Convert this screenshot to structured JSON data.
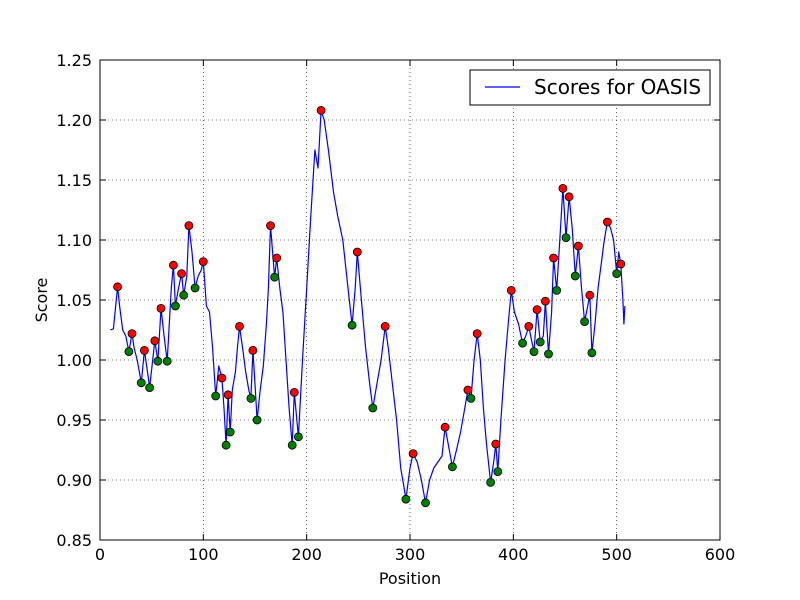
{
  "chart_data": {
    "type": "line",
    "xlabel": "Position",
    "ylabel": "Score",
    "xlim": [
      0,
      600
    ],
    "ylim": [
      0.85,
      1.25
    ],
    "xticks": [
      0,
      100,
      200,
      300,
      400,
      500,
      600
    ],
    "yticks": [
      0.85,
      0.9,
      0.95,
      1.0,
      1.05,
      1.1,
      1.15,
      1.2,
      1.25
    ],
    "xtick_labels": [
      "0",
      "100",
      "200",
      "300",
      "400",
      "500",
      "600"
    ],
    "ytick_labels": [
      "0.85",
      "0.90",
      "0.95",
      "1.00",
      "1.05",
      "1.10",
      "1.15",
      "1.20",
      "1.25"
    ],
    "grid": true,
    "legend_position": "top-right",
    "legend": [
      "Scores for OASIS"
    ],
    "series": [
      {
        "name": "Scores for OASIS",
        "color": "#0000ff",
        "points": [
          [
            10,
            1.025
          ],
          [
            13,
            1.026
          ],
          [
            17,
            1.061
          ],
          [
            19,
            1.045
          ],
          [
            22,
            1.025
          ],
          [
            25,
            1.02
          ],
          [
            28,
            1.007
          ],
          [
            31,
            1.022
          ],
          [
            33,
            1.01
          ],
          [
            36,
            1.0
          ],
          [
            40,
            0.981
          ],
          [
            43,
            1.008
          ],
          [
            46,
            0.99
          ],
          [
            48,
            0.977
          ],
          [
            51,
            1.0
          ],
          [
            53,
            1.016
          ],
          [
            56,
            0.999
          ],
          [
            59,
            1.043
          ],
          [
            62,
            1.02
          ],
          [
            65,
            0.999
          ],
          [
            69,
            1.06
          ],
          [
            71,
            1.079
          ],
          [
            73,
            1.045
          ],
          [
            76,
            1.06
          ],
          [
            79,
            1.072
          ],
          [
            81,
            1.054
          ],
          [
            84,
            1.07
          ],
          [
            86,
            1.112
          ],
          [
            89,
            1.09
          ],
          [
            92,
            1.06
          ],
          [
            95,
            1.07
          ],
          [
            98,
            1.075
          ],
          [
            100,
            1.082
          ],
          [
            103,
            1.045
          ],
          [
            106,
            1.04
          ],
          [
            109,
            1.01
          ],
          [
            112,
            0.97
          ],
          [
            115,
            0.995
          ],
          [
            118,
            0.985
          ],
          [
            120,
            0.96
          ],
          [
            122,
            0.929
          ],
          [
            124,
            0.971
          ],
          [
            126,
            0.94
          ],
          [
            128,
            0.975
          ],
          [
            131,
            0.99
          ],
          [
            133,
            1.01
          ],
          [
            135,
            1.028
          ],
          [
            138,
            1.01
          ],
          [
            141,
            0.99
          ],
          [
            144,
            0.975
          ],
          [
            146,
            0.968
          ],
          [
            148,
            1.008
          ],
          [
            150,
            0.98
          ],
          [
            152,
            0.95
          ],
          [
            155,
            0.975
          ],
          [
            158,
            0.995
          ],
          [
            161,
            1.03
          ],
          [
            163,
            1.06
          ],
          [
            165,
            1.112
          ],
          [
            167,
            1.09
          ],
          [
            169,
            1.069
          ],
          [
            171,
            1.085
          ],
          [
            174,
            1.06
          ],
          [
            177,
            1.04
          ],
          [
            180,
            1.0
          ],
          [
            183,
            0.96
          ],
          [
            186,
            0.929
          ],
          [
            188,
            0.973
          ],
          [
            190,
            0.955
          ],
          [
            192,
            0.936
          ],
          [
            196,
            1.0
          ],
          [
            200,
            1.06
          ],
          [
            204,
            1.12
          ],
          [
            208,
            1.175
          ],
          [
            211,
            1.16
          ],
          [
            214,
            1.208
          ],
          [
            217,
            1.2
          ],
          [
            221,
            1.175
          ],
          [
            226,
            1.14
          ],
          [
            230,
            1.12
          ],
          [
            235,
            1.1
          ],
          [
            240,
            1.06
          ],
          [
            244,
            1.029
          ],
          [
            247,
            1.06
          ],
          [
            249,
            1.09
          ],
          [
            253,
            1.05
          ],
          [
            257,
            1.01
          ],
          [
            261,
            0.98
          ],
          [
            264,
            0.96
          ],
          [
            268,
            0.98
          ],
          [
            272,
            1.0
          ],
          [
            276,
            1.028
          ],
          [
            279,
            1.01
          ],
          [
            283,
            0.98
          ],
          [
            287,
            0.95
          ],
          [
            291,
            0.91
          ],
          [
            294,
            0.895
          ],
          [
            296,
            0.884
          ],
          [
            300,
            0.91
          ],
          [
            303,
            0.922
          ],
          [
            307,
            0.915
          ],
          [
            311,
            0.9
          ],
          [
            315,
            0.881
          ],
          [
            319,
            0.9
          ],
          [
            323,
            0.91
          ],
          [
            327,
            0.915
          ],
          [
            331,
            0.92
          ],
          [
            334,
            0.944
          ],
          [
            337,
            0.93
          ],
          [
            341,
            0.911
          ],
          [
            345,
            0.925
          ],
          [
            349,
            0.94
          ],
          [
            353,
            0.96
          ],
          [
            356,
            0.975
          ],
          [
            359,
            0.968
          ],
          [
            362,
            1.0
          ],
          [
            365,
            1.022
          ],
          [
            368,
            1.0
          ],
          [
            371,
            0.96
          ],
          [
            374,
            0.93
          ],
          [
            378,
            0.898
          ],
          [
            381,
            0.915
          ],
          [
            383,
            0.93
          ],
          [
            385,
            0.907
          ],
          [
            388,
            0.95
          ],
          [
            392,
            1.0
          ],
          [
            395,
            1.03
          ],
          [
            398,
            1.058
          ],
          [
            401,
            1.04
          ],
          [
            405,
            1.03
          ],
          [
            409,
            1.014
          ],
          [
            412,
            1.02
          ],
          [
            415,
            1.028
          ],
          [
            418,
            1.015
          ],
          [
            420,
            1.007
          ],
          [
            423,
            1.042
          ],
          [
            426,
            1.015
          ],
          [
            429,
            1.02
          ],
          [
            431,
            1.049
          ],
          [
            434,
            1.005
          ],
          [
            437,
            1.04
          ],
          [
            439,
            1.085
          ],
          [
            442,
            1.058
          ],
          [
            445,
            1.1
          ],
          [
            448,
            1.143
          ],
          [
            451,
            1.102
          ],
          [
            454,
            1.136
          ],
          [
            457,
            1.11
          ],
          [
            460,
            1.07
          ],
          [
            463,
            1.095
          ],
          [
            466,
            1.06
          ],
          [
            469,
            1.032
          ],
          [
            472,
            1.045
          ],
          [
            474,
            1.054
          ],
          [
            476,
            1.006
          ],
          [
            479,
            1.03
          ],
          [
            482,
            1.06
          ],
          [
            485,
            1.08
          ],
          [
            488,
            1.1
          ],
          [
            491,
            1.115
          ],
          [
            494,
            1.11
          ],
          [
            497,
            1.1
          ],
          [
            500,
            1.072
          ],
          [
            502,
            1.09
          ],
          [
            504,
            1.08
          ],
          [
            506,
            1.05
          ],
          [
            507,
            1.03
          ],
          [
            508,
            1.045
          ]
        ]
      }
    ],
    "maxima": {
      "color": "#ff0000",
      "points": [
        [
          17,
          1.061
        ],
        [
          31,
          1.022
        ],
        [
          43,
          1.008
        ],
        [
          53,
          1.016
        ],
        [
          59,
          1.043
        ],
        [
          71,
          1.079
        ],
        [
          79,
          1.072
        ],
        [
          86,
          1.112
        ],
        [
          100,
          1.082
        ],
        [
          118,
          0.985
        ],
        [
          124,
          0.971
        ],
        [
          135,
          1.028
        ],
        [
          148,
          1.008
        ],
        [
          165,
          1.112
        ],
        [
          171,
          1.085
        ],
        [
          188,
          0.973
        ],
        [
          214,
          1.208
        ],
        [
          249,
          1.09
        ],
        [
          276,
          1.028
        ],
        [
          303,
          0.922
        ],
        [
          334,
          0.944
        ],
        [
          356,
          0.975
        ],
        [
          365,
          1.022
        ],
        [
          383,
          0.93
        ],
        [
          398,
          1.058
        ],
        [
          415,
          1.028
        ],
        [
          423,
          1.042
        ],
        [
          431,
          1.049
        ],
        [
          439,
          1.085
        ],
        [
          448,
          1.143
        ],
        [
          454,
          1.136
        ],
        [
          463,
          1.095
        ],
        [
          474,
          1.054
        ],
        [
          491,
          1.115
        ],
        [
          504,
          1.08
        ]
      ]
    },
    "minima": {
      "color": "#008000",
      "points": [
        [
          28,
          1.007
        ],
        [
          40,
          0.981
        ],
        [
          48,
          0.977
        ],
        [
          56,
          0.999
        ],
        [
          65,
          0.999
        ],
        [
          73,
          1.045
        ],
        [
          81,
          1.054
        ],
        [
          92,
          1.06
        ],
        [
          112,
          0.97
        ],
        [
          122,
          0.929
        ],
        [
          126,
          0.94
        ],
        [
          146,
          0.968
        ],
        [
          152,
          0.95
        ],
        [
          169,
          1.069
        ],
        [
          186,
          0.929
        ],
        [
          192,
          0.936
        ],
        [
          244,
          1.029
        ],
        [
          264,
          0.96
        ],
        [
          296,
          0.884
        ],
        [
          315,
          0.881
        ],
        [
          341,
          0.911
        ],
        [
          359,
          0.968
        ],
        [
          378,
          0.898
        ],
        [
          385,
          0.907
        ],
        [
          409,
          1.014
        ],
        [
          420,
          1.007
        ],
        [
          426,
          1.015
        ],
        [
          434,
          1.005
        ],
        [
          442,
          1.058
        ],
        [
          451,
          1.102
        ],
        [
          460,
          1.07
        ],
        [
          469,
          1.032
        ],
        [
          476,
          1.006
        ],
        [
          500,
          1.072
        ]
      ]
    }
  }
}
